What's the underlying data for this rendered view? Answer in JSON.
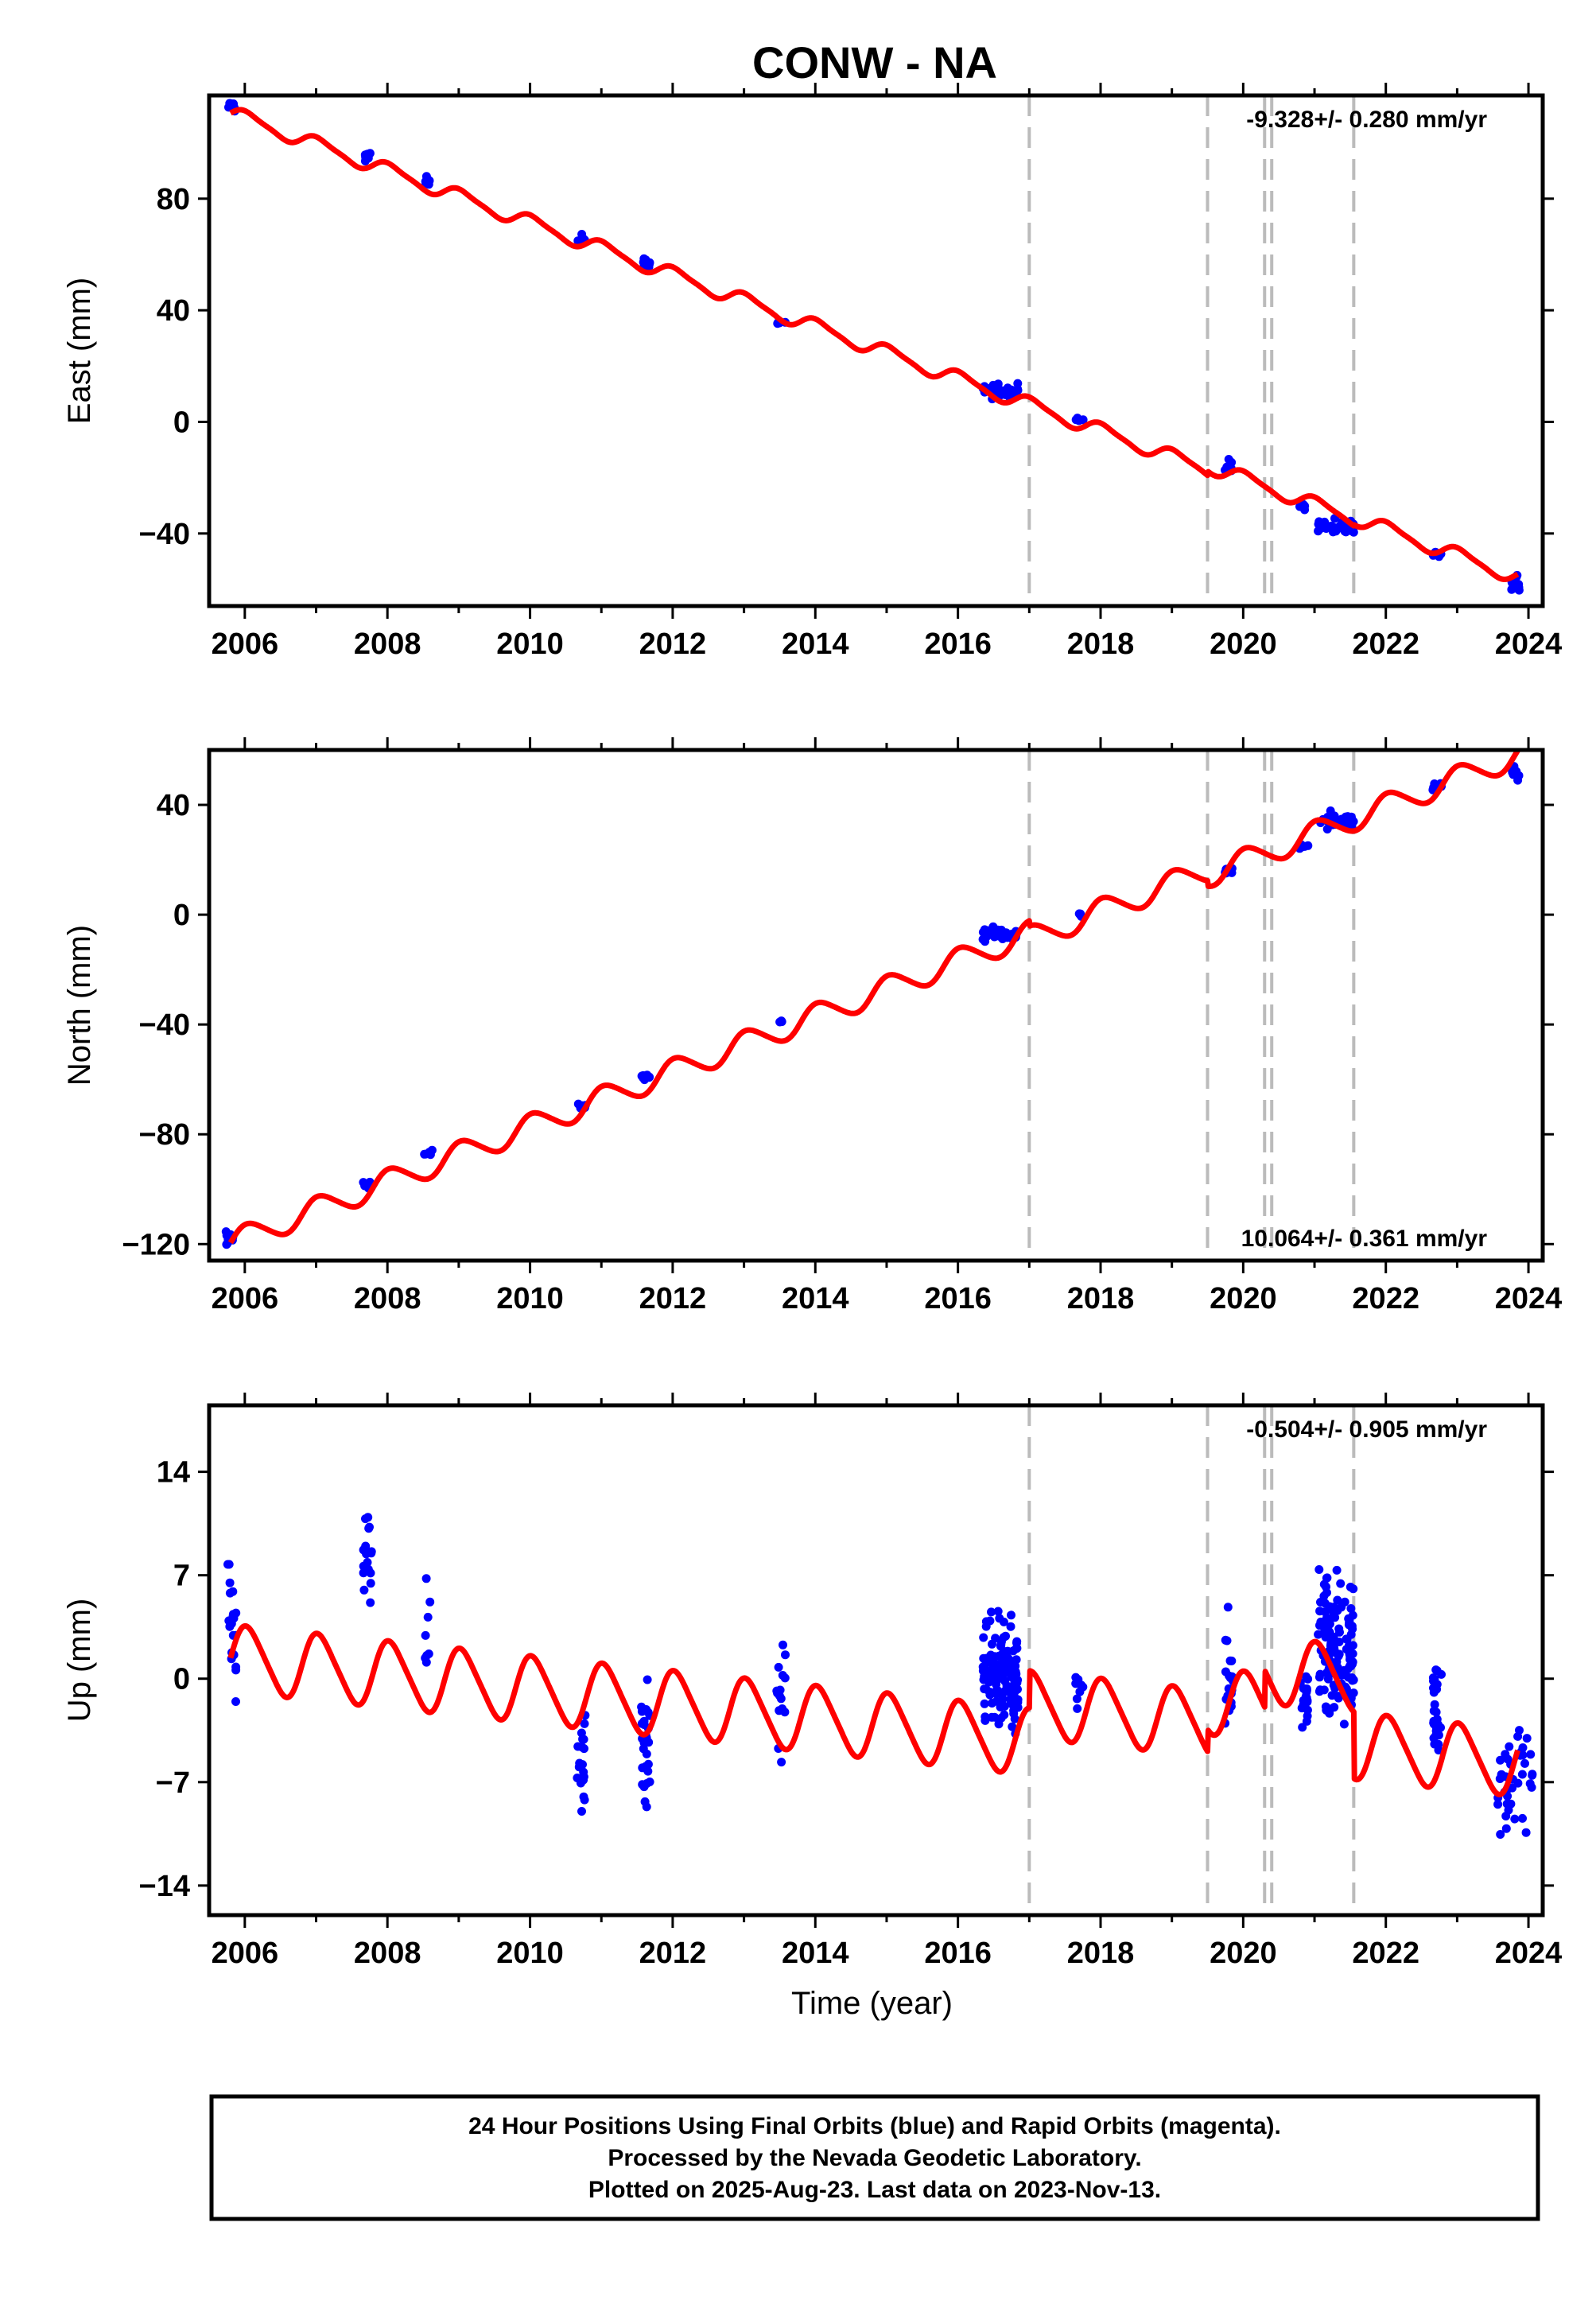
{
  "title": "CONW - NA",
  "footer": {
    "lines": [
      "24 Hour Positions Using Final Orbits (blue) and Rapid Orbits (magenta).",
      "Processed by the Nevada Geodetic Laboratory.",
      "Plotted on 2025-Aug-23. Last data on 2023-Nov-13."
    ]
  },
  "colors": {
    "data": "#0000ff",
    "model": "#ff0000",
    "breaks": "#bbbbbb",
    "axis": "#000000"
  },
  "chart_data": [
    {
      "type": "scatter",
      "ylabel": "East (mm)",
      "xlabel": "",
      "xlim": [
        2005.5,
        2024.2
      ],
      "ylim": [
        -66,
        117
      ],
      "xticks": [
        2006,
        2008,
        2010,
        2012,
        2014,
        2016,
        2018,
        2020,
        2022,
        2024
      ],
      "yticks": [
        80,
        40,
        0,
        -40
      ],
      "ytick_labels": [
        "80",
        "40",
        "0",
        "−40"
      ],
      "rate_label": "-9.328+/- 0.280 mm/yr",
      "rate_position": "top-right",
      "breaks": [
        2017.0,
        2019.5,
        2020.3,
        2020.4,
        2021.55
      ],
      "model": {
        "intercept": 108.8,
        "slope": -9.328,
        "ref_year": 2006.0,
        "amp_annual": 2.5,
        "amp_semiannual": 0.6,
        "offsets": [
          {
            "year": 2019.5,
            "value": 1.5
          },
          {
            "year": 2021.55,
            "value": 0.5
          }
        ]
      },
      "clusters": [
        {
          "t": 2005.82,
          "y": 113,
          "spread": 2.0,
          "n": 12
        },
        {
          "t": 2007.72,
          "y": 95,
          "spread": 2.0,
          "n": 10
        },
        {
          "t": 2008.57,
          "y": 86,
          "spread": 1.8,
          "n": 6
        },
        {
          "t": 2010.72,
          "y": 66,
          "spread": 1.5,
          "n": 6
        },
        {
          "t": 2011.62,
          "y": 57,
          "spread": 2.0,
          "n": 10
        },
        {
          "t": 2013.52,
          "y": 35,
          "spread": 1.0,
          "n": 4
        },
        {
          "t": 2016.6,
          "y": 11,
          "spread": 2.5,
          "n": 40
        },
        {
          "t": 2017.7,
          "y": 1,
          "spread": 1.0,
          "n": 4
        },
        {
          "t": 2019.8,
          "y": -16,
          "spread": 3.0,
          "n": 8
        },
        {
          "t": 2020.85,
          "y": -30,
          "spread": 1.5,
          "n": 6
        },
        {
          "t": 2021.3,
          "y": -38,
          "spread": 3.0,
          "n": 35
        },
        {
          "t": 2022.72,
          "y": -47,
          "spread": 1.5,
          "n": 8
        },
        {
          "t": 2023.82,
          "y": -57,
          "spread": 3.0,
          "n": 12
        }
      ]
    },
    {
      "type": "scatter",
      "ylabel": "North (mm)",
      "xlabel": "",
      "xlim": [
        2005.5,
        2024.2
      ],
      "ylim": [
        -126,
        60
      ],
      "xticks": [
        2006,
        2008,
        2010,
        2012,
        2014,
        2016,
        2018,
        2020,
        2022,
        2024
      ],
      "yticks": [
        40,
        0,
        -40,
        -80,
        -120
      ],
      "ytick_labels": [
        "40",
        "0",
        "−40",
        "−80",
        "−120"
      ],
      "rate_label": "10.064+/- 0.361 mm/yr",
      "rate_position": "bottom-right",
      "breaks": [
        2017.0,
        2019.5,
        2020.3,
        2020.4,
        2021.55
      ],
      "model": {
        "intercept": -117.5,
        "slope": 10.064,
        "ref_year": 2006.0,
        "amp_annual": 4.5,
        "amp_semiannual": 0.5,
        "offsets": [
          {
            "year": 2017.0,
            "value": -2.0
          },
          {
            "year": 2019.5,
            "value": -2.0
          }
        ]
      },
      "clusters": [
        {
          "t": 2005.78,
          "y": -118,
          "spread": 2.5,
          "n": 10
        },
        {
          "t": 2007.72,
          "y": -98,
          "spread": 1.5,
          "n": 6
        },
        {
          "t": 2008.57,
          "y": -87,
          "spread": 1.2,
          "n": 5
        },
        {
          "t": 2010.72,
          "y": -70,
          "spread": 1.5,
          "n": 6
        },
        {
          "t": 2011.62,
          "y": -59,
          "spread": 1.5,
          "n": 8
        },
        {
          "t": 2013.52,
          "y": -39,
          "spread": 1.2,
          "n": 4
        },
        {
          "t": 2016.6,
          "y": -7,
          "spread": 2.5,
          "n": 40
        },
        {
          "t": 2017.7,
          "y": 0,
          "spread": 1.0,
          "n": 4
        },
        {
          "t": 2019.8,
          "y": 16,
          "spread": 1.5,
          "n": 8
        },
        {
          "t": 2020.85,
          "y": 25,
          "spread": 1.2,
          "n": 6
        },
        {
          "t": 2021.3,
          "y": 34,
          "spread": 3.0,
          "n": 35
        },
        {
          "t": 2022.72,
          "y": 47,
          "spread": 1.5,
          "n": 8
        },
        {
          "t": 2023.82,
          "y": 52,
          "spread": 2.5,
          "n": 12
        }
      ]
    },
    {
      "type": "scatter",
      "ylabel": "Up (mm)",
      "xlabel": "Time (year)",
      "xlim": [
        2005.5,
        2024.2
      ],
      "ylim": [
        -16,
        18.5
      ],
      "xticks": [
        2006,
        2008,
        2010,
        2012,
        2014,
        2016,
        2018,
        2020,
        2022,
        2024
      ],
      "yticks": [
        14,
        7,
        0,
        -7,
        -14
      ],
      "ytick_labels": [
        "14",
        "7",
        "0",
        "−7",
        "−14"
      ],
      "rate_label": "-0.504+/- 0.905 mm/yr",
      "rate_position": "top-right",
      "breaks": [
        2017.0,
        2019.5,
        2020.3,
        2020.4,
        2021.55
      ],
      "model": {
        "intercept": 1.3,
        "slope": -0.504,
        "ref_year": 2006.0,
        "amp_annual": 2.2,
        "amp_semiannual": 0.3,
        "offsets": [
          {
            "year": 2017.0,
            "value": 2.5
          },
          {
            "year": 2019.5,
            "value": 1.5
          },
          {
            "year": 2020.3,
            "value": 2.5
          },
          {
            "year": 2021.55,
            "value": -4.5
          }
        ]
      },
      "clusters": [
        {
          "t": 2005.82,
          "y": 4,
          "spread": 4.5,
          "n": 20
        },
        {
          "t": 2007.72,
          "y": 8,
          "spread": 5.0,
          "n": 18
        },
        {
          "t": 2008.57,
          "y": 4,
          "spread": 3.5,
          "n": 8
        },
        {
          "t": 2010.72,
          "y": -6,
          "spread": 4.0,
          "n": 20
        },
        {
          "t": 2011.62,
          "y": -4,
          "spread": 4.5,
          "n": 30
        },
        {
          "t": 2013.52,
          "y": -2,
          "spread": 4.5,
          "n": 16
        },
        {
          "t": 2016.6,
          "y": 0,
          "spread": 3.8,
          "n": 140
        },
        {
          "t": 2017.7,
          "y": 0,
          "spread": 2.0,
          "n": 8
        },
        {
          "t": 2019.8,
          "y": 0,
          "spread": 4.0,
          "n": 20
        },
        {
          "t": 2020.85,
          "y": -1,
          "spread": 2.5,
          "n": 20
        },
        {
          "t": 2021.3,
          "y": 2,
          "spread": 4.5,
          "n": 140
        },
        {
          "t": 2022.72,
          "y": -2,
          "spread": 3.0,
          "n": 30
        },
        {
          "t": 2023.82,
          "y": -7,
          "spread": 3.5,
          "n": 40
        }
      ]
    }
  ]
}
